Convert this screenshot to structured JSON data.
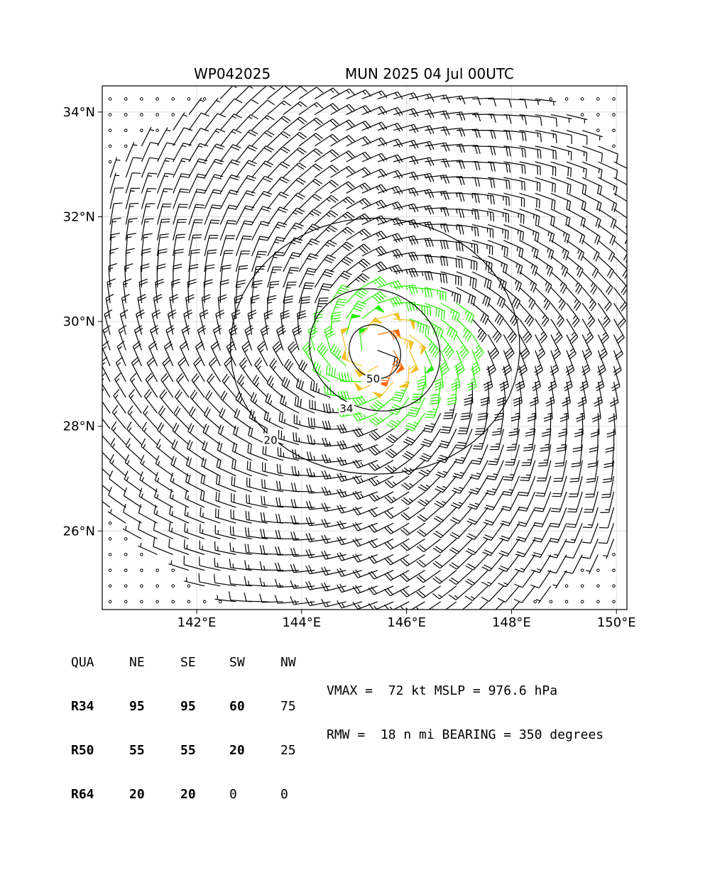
{
  "header": {
    "storm_id": "WP042025",
    "model_time": "MUN 2025 04 Jul 00UTC"
  },
  "chart_data": {
    "type": "wind-barb-map",
    "title": "WP042025  MUN 2025 04 Jul 00UTC",
    "xlim": [
      140.2,
      150.2
    ],
    "ylim": [
      24.5,
      34.5
    ],
    "x_ticks": [
      {
        "value": 142,
        "label": "142°E"
      },
      {
        "value": 144,
        "label": "144°E"
      },
      {
        "value": 146,
        "label": "146°E"
      },
      {
        "value": 148,
        "label": "148°E"
      },
      {
        "value": 150,
        "label": "150°E"
      }
    ],
    "y_ticks": [
      {
        "value": 26,
        "label": "26°N"
      },
      {
        "value": 28,
        "label": "28°N"
      },
      {
        "value": 30,
        "label": "30°N"
      },
      {
        "value": 32,
        "label": "32°N"
      },
      {
        "value": 34,
        "label": "34°N"
      }
    ],
    "grid": true,
    "grid_spacing_deg": 0.3,
    "center": {
      "lon": 145.4,
      "lat": 29.4
    },
    "contours": [
      {
        "label": "20",
        "color": "#000000",
        "radius_deg": 2.6
      },
      {
        "label": "34",
        "color": "#000000",
        "radius_deg": 1.2
      },
      {
        "label": "50",
        "color": "#000000",
        "radius_deg": 0.5
      }
    ],
    "barb_color_bands": [
      {
        "min_kt": 0,
        "max_kt": 34,
        "color": "#000000"
      },
      {
        "min_kt": 34,
        "max_kt": 50,
        "color": "#22ee00"
      },
      {
        "min_kt": 50,
        "max_kt": 64,
        "color": "#f0c020"
      },
      {
        "min_kt": 64,
        "max_kt": 999,
        "color": "#ff6600"
      }
    ],
    "vmax_kt": 72,
    "rmw_nmi": 18
  },
  "radii_table": {
    "header": [
      "QUA",
      "NE",
      "SE",
      "SW",
      "NW"
    ],
    "rows": [
      [
        "R34",
        "95",
        "95",
        "60",
        "75"
      ],
      [
        "R50",
        "55",
        "55",
        "20",
        "25"
      ],
      [
        "R64",
        "20",
        "20",
        "0",
        "0"
      ]
    ]
  },
  "summary": {
    "line1": "VMAX =  72 kt MSLP = 976.6 hPa",
    "line2": "RMW =  18 n mi BEARING = 350 degrees"
  }
}
